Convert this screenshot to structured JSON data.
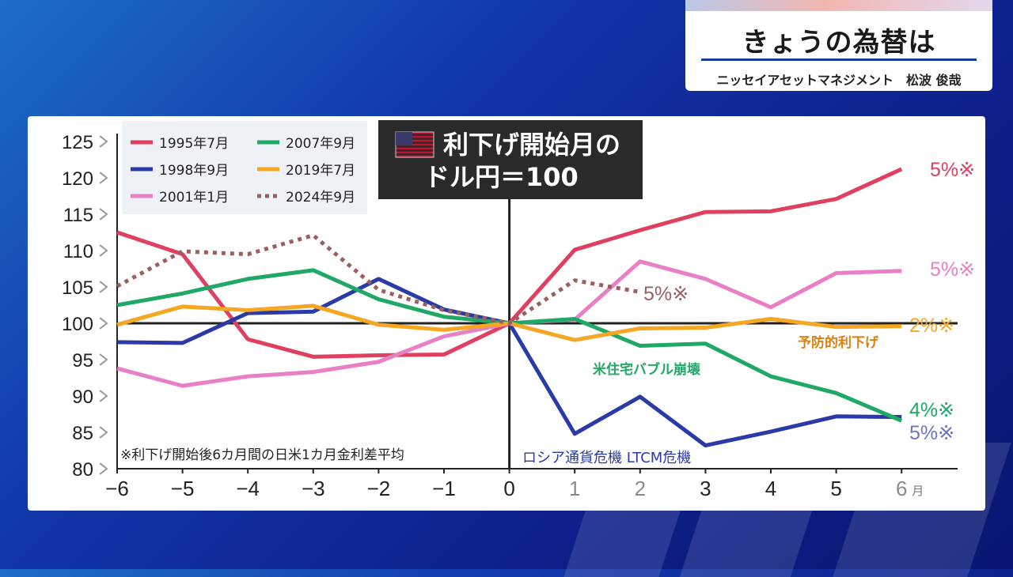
{
  "header": {
    "title": "きょうの為替は",
    "subtitle": "ニッセイアセットマネジメント　松波 俊哉"
  },
  "chart_data": {
    "type": "line",
    "title": "利下げ開始月の\nドル円＝100",
    "title_line1": "利下げ開始月の",
    "title_line2": "ドル円＝100",
    "xlabel": "",
    "x_tick_labels": [
      "−6",
      "−5",
      "−4",
      "−3",
      "−2",
      "−1",
      "0",
      "1",
      "2",
      "3",
      "4",
      "5",
      "6"
    ],
    "x_unit": "月",
    "x": [
      -6,
      -5,
      -4,
      -3,
      -2,
      -1,
      0,
      1,
      2,
      3,
      4,
      5,
      6
    ],
    "ylim": [
      80,
      125
    ],
    "y_ticks": [
      "80",
      "85",
      "90",
      "95",
      "100",
      "105",
      "110",
      "115",
      "120",
      "125"
    ],
    "y_tick_values": [
      80,
      85,
      90,
      95,
      100,
      105,
      110,
      115,
      120,
      125
    ],
    "baseline": 100,
    "legend_placement": "top-left",
    "series": [
      {
        "name": "1995年7月",
        "color": "#e04060",
        "dash": false,
        "values": [
          112.5,
          109.5,
          97.8,
          95.4,
          95.6,
          95.7,
          100,
          110.1,
          112.8,
          115.3,
          115.4,
          117.1,
          121.2
        ],
        "end_label": "5%※"
      },
      {
        "name": "1998年9月",
        "color": "#2a3aa8",
        "dash": false,
        "values": [
          97.4,
          97.3,
          101.4,
          101.6,
          106.1,
          101.9,
          100,
          84.8,
          89.9,
          83.2,
          85.1,
          87.2,
          87.1
        ],
        "end_label": "5%※"
      },
      {
        "name": "2001年1月",
        "color": "#e97fc4",
        "dash": false,
        "values": [
          93.8,
          91.4,
          92.7,
          93.3,
          94.7,
          98.2,
          100,
          100.5,
          108.5,
          106.1,
          102.2,
          106.9,
          107.2
        ],
        "end_label": "5%※"
      },
      {
        "name": "2007年9月",
        "color": "#1fa866",
        "dash": false,
        "values": [
          102.5,
          104.1,
          106.1,
          107.3,
          103.3,
          100.9,
          100,
          100.6,
          96.9,
          97.2,
          92.7,
          90.4,
          86.6
        ],
        "end_label": "4%※"
      },
      {
        "name": "2019年7月",
        "color": "#f5a623",
        "dash": false,
        "values": [
          99.8,
          102.3,
          101.8,
          102.4,
          99.8,
          99.1,
          100,
          97.7,
          99.3,
          99.4,
          100.6,
          99.5,
          99.6
        ],
        "end_label": "2%※"
      },
      {
        "name": "2024年9月",
        "color": "#9a6060",
        "dash": true,
        "values": [
          105.1,
          109.9,
          109.5,
          112.1,
          104.6,
          101.8,
          100,
          105.9,
          104.3,
          null,
          null,
          null,
          null
        ],
        "end_label": "5%※"
      }
    ],
    "annotations": {
      "note": "※利下げ開始後6カ月間の日米1カ月金利差平均",
      "crisis_1998": "ロシア通貨危機 LTCM危機",
      "crisis_2007": "米住宅バブル崩壊",
      "preventive_2019": "予防的利下げ"
    },
    "colors": {
      "red": "#e04060",
      "navy": "#2a3aa8",
      "pink": "#e97fc4",
      "green": "#1fa866",
      "orange": "#f5a623",
      "brown": "#9a6060",
      "legend_bg": "#eef1f6",
      "title_box": "#2a2a2a"
    }
  }
}
